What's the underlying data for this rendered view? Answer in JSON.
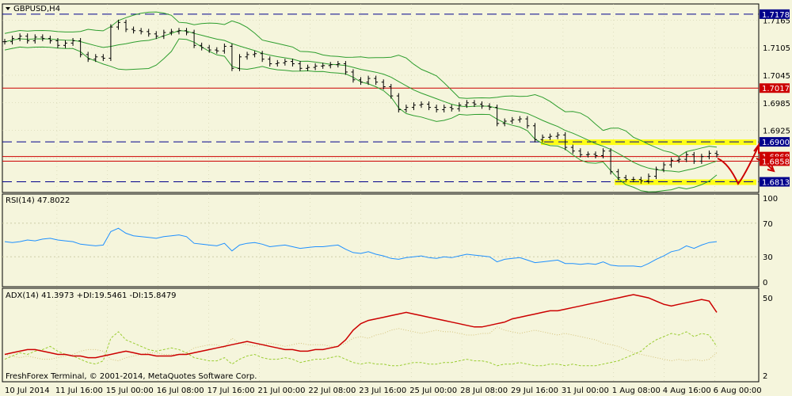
{
  "window": {
    "title": "GBPUSD,H4",
    "copyright": "FreshForex Terminal, © 2001-2014, MetaQuotes Software Corp."
  },
  "colors": {
    "background": "#f5f5dc",
    "grid": "#c8c8a0",
    "candles": "#000000",
    "bands": "#2e9e2e",
    "dashed_levels": "#00008b",
    "red_levels": "#cc0000",
    "highlight": "#ffff00",
    "rsi_line": "#1e90ff",
    "adx_line": "#cc0000",
    "di_plus": "#9acd32",
    "di_minus": "#d4c27a",
    "tag_red": "#cc0000",
    "tag_navy": "#00008b"
  },
  "chart_data": [
    {
      "type": "candlestick",
      "title": "GBPUSD,H4",
      "y_ticks": [
        "1.7165",
        "1.7105",
        "1.7045",
        "1.6985",
        "1.6925",
        "1.6865"
      ],
      "ylim": [
        1.6795,
        1.7195
      ],
      "x_ticks": [
        "10 Jul 2014",
        "11 Jul 16:00",
        "15 Jul 00:00",
        "16 Jul 08:00",
        "17 Jul 16:00",
        "21 Jul 00:00",
        "22 Jul 08:00",
        "23 Jul 16:00",
        "25 Jul 00:00",
        "28 Jul 08:00",
        "29 Jul 16:00",
        "31 Jul 00:00",
        "1 Aug 08:00",
        "4 Aug 16:00",
        "6 Aug 00:00"
      ],
      "price_path": [
        1.7118,
        1.7125,
        1.713,
        1.712,
        1.7128,
        1.7125,
        1.712,
        1.711,
        1.7115,
        1.712,
        1.709,
        1.708,
        1.7085,
        1.7082,
        1.715,
        1.716,
        1.7145,
        1.7142,
        1.714,
        1.7135,
        1.713,
        1.7138,
        1.714,
        1.7142,
        1.7138,
        1.711,
        1.7105,
        1.71,
        1.7098,
        1.7108,
        1.706,
        1.7085,
        1.709,
        1.7092,
        1.708,
        1.707,
        1.7072,
        1.7075,
        1.707,
        1.706,
        1.7062,
        1.7065,
        1.7066,
        1.7068,
        1.707,
        1.7052,
        1.7035,
        1.703,
        1.7038,
        1.703,
        1.702,
        1.7,
        1.697,
        1.6975,
        1.698,
        1.6982,
        1.6975,
        1.697,
        1.6975,
        1.6972,
        1.698,
        1.6985,
        1.6982,
        1.6978,
        1.6975,
        1.694,
        1.6945,
        1.6948,
        1.695,
        1.6935,
        1.6905,
        1.691,
        1.6912,
        1.6915,
        1.6888,
        1.688,
        1.6872,
        1.6873,
        1.687,
        1.688,
        1.6835,
        1.6822,
        1.6818,
        1.6818,
        1.6815,
        1.6825,
        1.684,
        1.685,
        1.686,
        1.6862,
        1.6872,
        1.6858,
        1.6868,
        1.6875,
        1.6872
      ],
      "levels": {
        "top_dashed": "1.7178",
        "red_upper": "1.7017",
        "dashed_1690": "1.6900",
        "red_lower_a": "1.6868",
        "red_lower_b": "1.6858",
        "dashed_bottom": "1.6813"
      },
      "annotations": [
        "yellow support/resistance zone 1.6813–1.6900",
        "red hand-drawn forecast arrow"
      ]
    },
    {
      "type": "line",
      "title": "RSI(14) 47.8022",
      "y_ticks": [
        "100",
        "70",
        "30",
        "0"
      ],
      "ylim": [
        0,
        100
      ],
      "levels": [
        70,
        30
      ],
      "values": [
        48,
        47,
        48,
        50,
        49,
        51,
        52,
        50,
        49,
        48,
        45,
        44,
        43,
        44,
        60,
        64,
        58,
        55,
        54,
        53,
        52,
        54,
        55,
        56,
        54,
        46,
        45,
        44,
        43,
        46,
        37,
        44,
        46,
        47,
        45,
        42,
        43,
        44,
        42,
        40,
        41,
        42,
        42,
        43,
        44,
        39,
        35,
        34,
        36,
        33,
        31,
        28,
        27,
        29,
        30,
        31,
        29,
        28,
        30,
        29,
        31,
        33,
        32,
        31,
        30,
        24,
        27,
        28,
        29,
        26,
        23,
        24,
        25,
        26,
        22,
        22,
        21,
        22,
        21,
        24,
        20,
        19,
        19,
        19,
        18,
        22,
        27,
        31,
        36,
        38,
        43,
        40,
        44,
        47,
        48
      ]
    },
    {
      "type": "line",
      "title": "ADX(14) 41.3973 +DI:19.5461 -DI:15.8479",
      "y_ticks": [
        "50",
        "2"
      ],
      "series": [
        {
          "name": "ADX",
          "values": [
            15,
            16,
            17,
            18,
            18,
            17,
            16,
            15,
            15,
            14,
            14,
            13,
            13,
            14,
            15,
            16,
            17,
            16,
            15,
            15,
            14,
            14,
            14,
            15,
            15,
            16,
            17,
            18,
            19,
            20,
            21,
            22,
            23,
            22,
            21,
            20,
            19,
            18,
            18,
            17,
            17,
            18,
            18,
            19,
            20,
            24,
            30,
            34,
            36,
            37,
            38,
            39,
            40,
            41,
            40,
            39,
            38,
            37,
            36,
            35,
            34,
            33,
            32,
            32,
            33,
            34,
            35,
            37,
            38,
            39,
            40,
            41,
            42,
            42,
            43,
            44,
            45,
            46,
            47,
            48,
            49,
            50,
            51,
            52,
            51,
            50,
            48,
            46,
            45,
            46,
            47,
            48,
            49,
            48,
            41
          ]
        },
        {
          "name": "+DI",
          "values": [
            12,
            14,
            16,
            15,
            17,
            18,
            20,
            17,
            15,
            14,
            12,
            10,
            9,
            11,
            25,
            29,
            24,
            22,
            20,
            18,
            17,
            18,
            19,
            18,
            16,
            13,
            12,
            11,
            11,
            13,
            9,
            12,
            14,
            15,
            13,
            12,
            12,
            13,
            12,
            10,
            11,
            12,
            12,
            13,
            14,
            12,
            10,
            9,
            10,
            9,
            9,
            8,
            8,
            9,
            10,
            10,
            9,
            9,
            10,
            10,
            11,
            12,
            11,
            11,
            10,
            8,
            9,
            9,
            10,
            9,
            8,
            8,
            9,
            9,
            8,
            9,
            8,
            8,
            8,
            9,
            10,
            11,
            13,
            15,
            17,
            21,
            24,
            26,
            28,
            27,
            29,
            26,
            28,
            27,
            20
          ]
        },
        {
          "name": "-DI",
          "values": [
            15,
            14,
            13,
            14,
            13,
            12,
            12,
            13,
            14,
            15,
            17,
            18,
            18,
            17,
            12,
            11,
            13,
            14,
            15,
            16,
            16,
            15,
            15,
            15,
            16,
            19,
            20,
            21,
            21,
            19,
            25,
            22,
            21,
            20,
            21,
            22,
            21,
            20,
            21,
            22,
            21,
            21,
            21,
            20,
            20,
            22,
            25,
            26,
            25,
            27,
            28,
            30,
            31,
            30,
            29,
            28,
            29,
            30,
            29,
            29,
            28,
            27,
            27,
            28,
            28,
            32,
            30,
            29,
            28,
            29,
            30,
            29,
            28,
            27,
            28,
            27,
            26,
            25,
            24,
            22,
            21,
            20,
            18,
            16,
            15,
            14,
            13,
            12,
            11,
            12,
            11,
            12,
            11,
            12,
            16
          ]
        }
      ]
    }
  ]
}
